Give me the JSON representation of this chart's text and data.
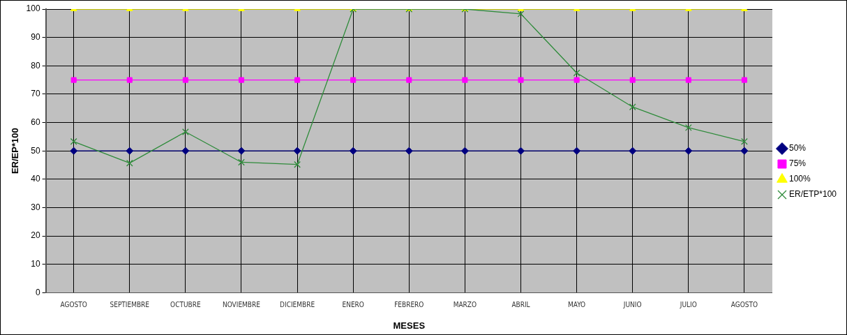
{
  "chart_data": {
    "type": "line",
    "xlabel": "MESES",
    "ylabel": "ER/EP*100",
    "categories": [
      "AGOSTO",
      "SEPTIEMBRE",
      "OCTUBRE",
      "NOVIEMBRE",
      "DICIEMBRE",
      "ENERO",
      "FEBRERO",
      "MARZO",
      "ABRIL",
      "MAYO",
      "JUNIO",
      "JULIO",
      "AGOSTO"
    ],
    "series": [
      {
        "name": "50%",
        "color": "#000080",
        "marker": "diamond",
        "values": [
          50,
          50,
          50,
          50,
          50,
          50,
          50,
          50,
          50,
          50,
          50,
          50,
          50
        ]
      },
      {
        "name": "75%",
        "color": "#ff00ff",
        "marker": "square",
        "values": [
          75,
          75,
          75,
          75,
          75,
          75,
          75,
          75,
          75,
          75,
          75,
          75,
          75
        ]
      },
      {
        "name": "100%",
        "color": "#ffff00",
        "marker": "triangle",
        "values": [
          100,
          100,
          100,
          100,
          100,
          100,
          100,
          100,
          100,
          100,
          100,
          100,
          100
        ]
      },
      {
        "name": "ER/ETP*100",
        "color": "#2e8b3a",
        "marker": "cross",
        "values": [
          53.3,
          45.7,
          56.7,
          46,
          45.2,
          100,
          100,
          100,
          98.3,
          77.5,
          65.5,
          58.2,
          53.3
        ]
      }
    ],
    "ylim": [
      0,
      100
    ],
    "yticks": [
      0,
      10,
      20,
      30,
      40,
      50,
      60,
      70,
      80,
      90,
      100
    ],
    "grid": true,
    "legend": "right",
    "line_style": "solid"
  }
}
